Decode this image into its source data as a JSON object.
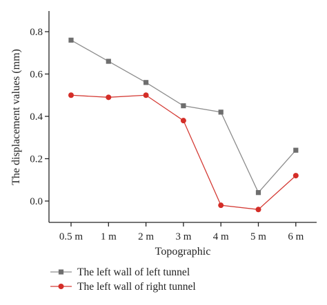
{
  "chart_data": {
    "type": "line",
    "categories": [
      "0.5 m",
      "1 m",
      "2 m",
      "3 m",
      "4 m",
      "5 m",
      "6 m"
    ],
    "xlabel": "Topographic",
    "ylabel": "The displacement values (mm)",
    "ylim": [
      -0.1,
      0.9
    ],
    "yticks": [
      0.0,
      0.2,
      0.4,
      0.6,
      0.8
    ],
    "ytick_labels": [
      "0.0",
      "0.2",
      "0.4",
      "0.6",
      "0.8"
    ],
    "grid": false,
    "legend_position": "bottom-left",
    "series": [
      {
        "name": "The left wall of left tunnel",
        "values": [
          0.76,
          0.66,
          0.56,
          0.45,
          0.42,
          0.04,
          0.24
        ],
        "line_color": "#8c8c8c",
        "marker_color": "#6e6e6e",
        "marker": "square"
      },
      {
        "name": "The left wall of right tunnel",
        "values": [
          0.5,
          0.49,
          0.5,
          0.38,
          -0.02,
          -0.04,
          0.12
        ],
        "line_color": "#d43a34",
        "marker_color": "#d42d27",
        "marker": "circle"
      }
    ]
  }
}
